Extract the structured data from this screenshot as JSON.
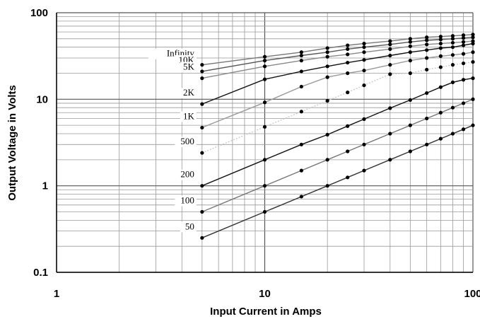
{
  "chart_data": {
    "type": "line",
    "title": "",
    "xlabel": "Input Current in Amps",
    "ylabel": "Output Voltage in Volts",
    "xscale": "log",
    "yscale": "log",
    "xlim": [
      1,
      100
    ],
    "ylim": [
      0.1,
      100
    ],
    "grid": true,
    "legend": "inline labels at left end of curves",
    "x_ticks": [
      "1",
      "10",
      "100"
    ],
    "y_ticks": [
      "0.1",
      "1",
      "10",
      "100"
    ],
    "x": [
      5,
      10,
      15,
      20,
      25,
      30,
      40,
      50,
      60,
      70,
      80,
      90,
      100
    ],
    "series": [
      {
        "name": "Infinity",
        "color": "#777777",
        "dashed": false,
        "values": [
          25,
          31,
          35,
          39,
          42,
          44,
          47,
          50,
          52,
          53,
          54,
          55,
          56
        ]
      },
      {
        "name": "10K",
        "color": "#555555",
        "dashed": false,
        "values": [
          21,
          28,
          32,
          35,
          38,
          40,
          43,
          46,
          48,
          49,
          50,
          51,
          52
        ]
      },
      {
        "name": "5K",
        "color": "#888888",
        "dashed": false,
        "values": [
          17.5,
          24,
          28,
          31,
          33,
          35,
          38,
          41,
          43,
          44,
          45,
          46,
          47
        ]
      },
      {
        "name": "2K",
        "color": "#111111",
        "dashed": false,
        "values": [
          8.8,
          17,
          21,
          24,
          26.5,
          28.5,
          32,
          35,
          37,
          39,
          40,
          42,
          44
        ]
      },
      {
        "name": "1K",
        "color": "#999999",
        "dashed": false,
        "values": [
          4.7,
          9.2,
          14,
          18,
          20,
          21.5,
          25,
          28,
          30,
          31.5,
          32.5,
          33.5,
          35
        ]
      },
      {
        "name": "500",
        "color": "#cccccc",
        "dashed": true,
        "values": [
          2.4,
          4.8,
          7.2,
          9.6,
          12,
          14.5,
          19.5,
          20,
          22,
          23.5,
          25,
          26,
          27
        ]
      },
      {
        "name": "200",
        "color": "#111111",
        "dashed": false,
        "values": [
          1.0,
          2.0,
          3.0,
          3.9,
          4.9,
          5.9,
          7.9,
          9.8,
          11.8,
          13.8,
          15.7,
          16.8,
          17.5
        ]
      },
      {
        "name": "100",
        "color": "#777777",
        "dashed": false,
        "values": [
          0.5,
          1.0,
          1.5,
          2.0,
          2.5,
          3.0,
          4.0,
          5.0,
          6.0,
          7.0,
          8.0,
          9.0,
          10.0
        ]
      },
      {
        "name": "50",
        "color": "#333333",
        "dashed": false,
        "values": [
          0.25,
          0.5,
          0.75,
          1.0,
          1.25,
          1.5,
          2.0,
          2.5,
          3.0,
          3.5,
          4.0,
          4.5,
          5.0
        ]
      }
    ]
  }
}
